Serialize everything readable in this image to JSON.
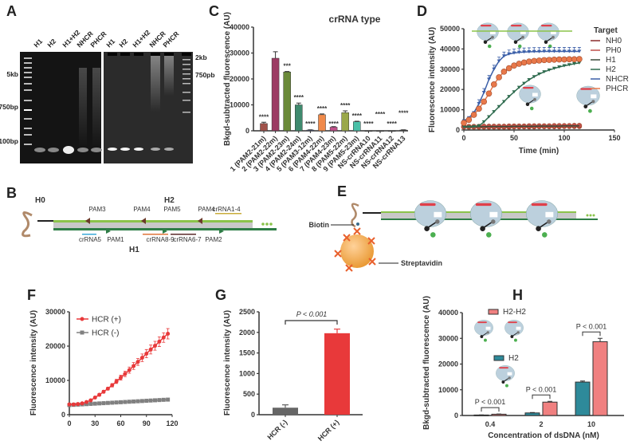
{
  "panel_labels": {
    "a": "A",
    "b": "B",
    "c": "C",
    "d": "D",
    "e": "E",
    "f": "F",
    "g": "G",
    "h": "H"
  },
  "gel": {
    "left_lanes": [
      "H1",
      "H2",
      "H1+H2",
      "NHCR",
      "PHCR"
    ],
    "right_lanes": [
      "H1",
      "H2",
      "H1+H2",
      "NHCR",
      "PHCR"
    ],
    "left_markers": [
      "5kb",
      "750bp",
      "100bp"
    ],
    "right_markers": [
      "2kb",
      "750pb"
    ]
  },
  "diagram_b": {
    "h0": "H0",
    "h2": "H2",
    "h1": "H1",
    "top_labels": [
      {
        "text": "PAM3",
        "color": "#3aa9d9"
      },
      {
        "text": "PAM4",
        "color": "#6b3a2a"
      },
      {
        "text": "PAM5",
        "color": "#e8956a"
      },
      {
        "text": "PAM4",
        "color": "#6b3a2a"
      },
      {
        "text": "crRNA1-4",
        "color": "#c9ac3a"
      }
    ],
    "bottom_labels": [
      {
        "text": "crRNA5",
        "color": "#3aa9d9"
      },
      {
        "text": "PAM1",
        "color": "#9b59a0"
      },
      {
        "text": "crRNA8-9",
        "color": "#e0743a"
      },
      {
        "text": "crRNA6-7",
        "color": "#5a2a2a"
      },
      {
        "text": "PAM2",
        "color": "#e0b86a"
      }
    ]
  },
  "diagram_e": {
    "biotin": "Biotin",
    "streptavidin": "Streptavidin"
  },
  "chart_data": [
    {
      "type": "bar",
      "title": "crRNA type",
      "xlabel": "",
      "ylabel": "Bkgd-subtracted fluorescence (AU)",
      "ylim": [
        0,
        40000
      ],
      "yticks": [
        "0",
        "10000",
        "20000",
        "30000",
        "40000"
      ],
      "categories": [
        "1 (PAM2-21m)",
        "2 (PAM2-22m)",
        "3 (PAM2-23m)",
        "4 (PAM2-24m)",
        "5 (PAM3-12m)",
        "6 (PAM4-22m)",
        "7 (PAM4-23m)",
        "8 (PAM5-22m)",
        "9 (PAM5-23m)",
        "NS-crRNA10",
        "NS-crRNA11",
        "NS-crRNA12",
        "NS-crRNA13"
      ],
      "values": [
        2800,
        28000,
        22700,
        10000,
        300,
        6200,
        1400,
        7000,
        3500,
        0,
        0,
        0,
        300
      ],
      "errors": [
        500,
        2500,
        200,
        700,
        100,
        300,
        200,
        700,
        200,
        0,
        0,
        0,
        100
      ],
      "significance": [
        "****",
        "",
        "***",
        "****",
        "****",
        "****",
        "****",
        "****",
        "****",
        "****",
        "****",
        "****",
        "****"
      ],
      "colors": [
        "#a0524a",
        "#9c3b63",
        "#6b8a3a",
        "#3f8a6e",
        "#5a6aa0",
        "#f08a4a",
        "#c0508a",
        "#9aa84a",
        "#4ac0a8",
        "#555555",
        "#555555",
        "#555555",
        "#555555"
      ]
    },
    {
      "type": "line",
      "title": "",
      "xlabel": "Time (min)",
      "ylabel": "Fluorescence intensity (AU)",
      "xlim": [
        0,
        150
      ],
      "ylim": [
        0,
        50000
      ],
      "xticks": [
        "0",
        "50",
        "100",
        "150"
      ],
      "yticks": [
        "0",
        "10000",
        "20000",
        "30000",
        "40000",
        "50000"
      ],
      "legend_title": "Target",
      "legend_position": "right",
      "x": [
        0,
        5,
        10,
        15,
        20,
        25,
        30,
        35,
        40,
        45,
        50,
        55,
        60,
        65,
        70,
        75,
        80,
        85,
        90,
        95,
        100,
        105,
        110,
        115
      ],
      "series": [
        {
          "name": "NH0",
          "color": "#8b2a2a",
          "values": [
            1500,
            1500,
            1500,
            1500,
            1500,
            1500,
            1500,
            1500,
            1500,
            1500,
            1600,
            1600,
            1600,
            1600,
            1600,
            1700,
            1700,
            1700,
            1700,
            1700,
            1800,
            1800,
            1800,
            1800
          ]
        },
        {
          "name": "PH0",
          "color": "#c0504a",
          "values": [
            1700,
            1700,
            1700,
            1700,
            1800,
            1800,
            1800,
            1800,
            1800,
            1900,
            1900,
            1900,
            1900,
            2000,
            2000,
            2000,
            2000,
            2000,
            2100,
            2100,
            2100,
            2100,
            2200,
            2200
          ]
        },
        {
          "name": "H1",
          "color": "#3a4a3a",
          "values": [
            1600,
            1600,
            1600,
            1600,
            1600,
            1700,
            1700,
            1700,
            1700,
            1700,
            1800,
            1800,
            1800,
            1800,
            1800,
            1900,
            1900,
            1900,
            1900,
            1900,
            2000,
            2000,
            2000,
            2000
          ]
        },
        {
          "name": "H2",
          "color": "#2e6b4e",
          "values": [
            1500,
            1500,
            1600,
            2000,
            4000,
            6500,
            9000,
            11500,
            14000,
            16500,
            18800,
            21000,
            23000,
            24800,
            26300,
            27600,
            28700,
            29600,
            30400,
            31100,
            31700,
            32200,
            32700,
            33100
          ]
        },
        {
          "name": "NHCR",
          "color": "#3b5fa8",
          "values": [
            4500,
            6000,
            8500,
            13000,
            18500,
            25000,
            30000,
            34000,
            36500,
            37500,
            38000,
            38300,
            38500,
            38600,
            38700,
            38700,
            38800,
            38800,
            38800,
            38800,
            38800,
            38800,
            38800,
            38800
          ]
        },
        {
          "name": "PHCR",
          "color": "#e8784a",
          "values": [
            3500,
            5000,
            7500,
            10500,
            14000,
            18000,
            22500,
            26000,
            28800,
            30500,
            31800,
            32700,
            33300,
            33800,
            34100,
            34300,
            34500,
            34600,
            34700,
            34800,
            34800,
            34900,
            34900,
            35000
          ]
        }
      ]
    },
    {
      "type": "line",
      "title": "",
      "xlabel": "",
      "ylabel": "Fluorescence intensity (AU)",
      "xlim": [
        0,
        120
      ],
      "ylim": [
        0,
        30000
      ],
      "xticks": [
        "0",
        "30",
        "60",
        "90",
        "120"
      ],
      "yticks": [
        "0",
        "10000",
        "20000",
        "30000"
      ],
      "legend_position": "top-left",
      "x": [
        0,
        5,
        10,
        15,
        20,
        25,
        30,
        35,
        40,
        45,
        50,
        55,
        60,
        65,
        70,
        75,
        80,
        85,
        90,
        95,
        100,
        105,
        110,
        115
      ],
      "series": [
        {
          "name": "HCR (+)",
          "color": "#e8393a",
          "values": [
            3000,
            3000,
            3100,
            3300,
            3700,
            4200,
            5000,
            5800,
            6700,
            7600,
            8600,
            9700,
            10800,
            11900,
            13000,
            14200,
            15400,
            16600,
            17800,
            19000,
            20100,
            21300,
            22500,
            23600
          ],
          "errors": [
            300,
            300,
            300,
            300,
            300,
            300,
            300,
            400,
            400,
            400,
            500,
            600,
            700,
            800,
            900,
            1000,
            1000,
            1100,
            1200,
            1300,
            1300,
            1400,
            1400,
            1500
          ]
        },
        {
          "name": "HCR (-)",
          "color": "#808080",
          "values": [
            2800,
            2870,
            2940,
            3010,
            3080,
            3150,
            3220,
            3290,
            3360,
            3430,
            3500,
            3570,
            3640,
            3710,
            3780,
            3850,
            3920,
            3990,
            4060,
            4130,
            4200,
            4270,
            4340,
            4400
          ]
        }
      ]
    },
    {
      "type": "bar",
      "title": "",
      "xlabel": "",
      "ylabel": "Fluorescence intensity (AU)",
      "ylim": [
        0,
        2500
      ],
      "yticks": [
        "0",
        "500",
        "1000",
        "1500",
        "2000",
        "2500"
      ],
      "categories": [
        "HCR (-)",
        "HCR (+)"
      ],
      "values": [
        170,
        1980
      ],
      "errors": [
        70,
        100
      ],
      "colors": [
        "#666666",
        "#e8393a"
      ],
      "annotation": "P < 0.001"
    },
    {
      "type": "bar",
      "title": "",
      "xlabel": "Concentration of dsDNA (nM)",
      "ylabel": "Bkgd-subtracted fluorescence (AU)",
      "ylim": [
        0,
        40000
      ],
      "yticks": [
        "0",
        "10000",
        "20000",
        "30000",
        "40000"
      ],
      "categories": [
        "0.4",
        "2",
        "10"
      ],
      "series": [
        {
          "name": "H2",
          "color": "#2e8a9a",
          "values": [
            200,
            1000,
            13000
          ],
          "errors": [
            50,
            150,
            400
          ]
        },
        {
          "name": "H2-H2",
          "color": "#f08080",
          "values": [
            500,
            5200,
            28700
          ],
          "errors": [
            100,
            300,
            1300
          ]
        }
      ],
      "annotations": [
        "P < 0.001",
        "P < 0.001",
        "P < 0.001"
      ]
    }
  ]
}
